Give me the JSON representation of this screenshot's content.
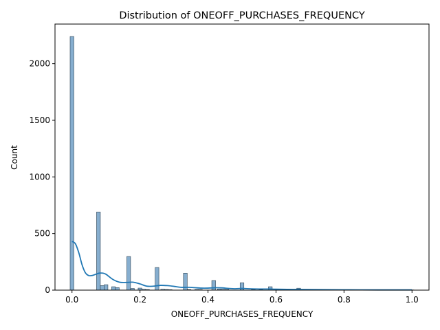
{
  "chart_data": {
    "type": "bar",
    "title": "Distribution of ONEOFF_PURCHASES_FREQUENCY",
    "xlabel": "ONEOFF_PURCHASES_FREQUENCY",
    "ylabel": "Count",
    "xlim": [
      -0.05,
      1.05
    ],
    "ylim": [
      0,
      2350
    ],
    "x_ticks": [
      0.0,
      0.2,
      0.4,
      0.6,
      0.8,
      1.0
    ],
    "x_tick_labels": [
      "0.0",
      "0.2",
      "0.4",
      "0.6",
      "0.8",
      "1.0"
    ],
    "y_ticks": [
      0,
      500,
      1000,
      1500,
      2000
    ],
    "y_tick_labels": [
      "0",
      "500",
      "1000",
      "1500",
      "2000"
    ],
    "grid": false,
    "bin_width": 0.0111,
    "bins": [
      {
        "x": 0.0,
        "count": 2240
      },
      {
        "x": 0.0778,
        "count": 690
      },
      {
        "x": 0.0889,
        "count": 40
      },
      {
        "x": 0.1,
        "count": 48
      },
      {
        "x": 0.1222,
        "count": 30
      },
      {
        "x": 0.1333,
        "count": 22
      },
      {
        "x": 0.1667,
        "count": 297
      },
      {
        "x": 0.1778,
        "count": 15
      },
      {
        "x": 0.2,
        "count": 18
      },
      {
        "x": 0.2111,
        "count": 8
      },
      {
        "x": 0.2222,
        "count": 5
      },
      {
        "x": 0.25,
        "count": 200
      },
      {
        "x": 0.2667,
        "count": 8
      },
      {
        "x": 0.2778,
        "count": 6
      },
      {
        "x": 0.2889,
        "count": 4
      },
      {
        "x": 0.3333,
        "count": 150
      },
      {
        "x": 0.3444,
        "count": 5
      },
      {
        "x": 0.3667,
        "count": 6
      },
      {
        "x": 0.3778,
        "count": 5
      },
      {
        "x": 0.4167,
        "count": 85
      },
      {
        "x": 0.4333,
        "count": 10
      },
      {
        "x": 0.4444,
        "count": 8
      },
      {
        "x": 0.4556,
        "count": 6
      },
      {
        "x": 0.5,
        "count": 65
      },
      {
        "x": 0.5333,
        "count": 6
      },
      {
        "x": 0.5556,
        "count": 5
      },
      {
        "x": 0.5833,
        "count": 30
      },
      {
        "x": 0.6111,
        "count": 5
      },
      {
        "x": 0.6667,
        "count": 17
      },
      {
        "x": 0.75,
        "count": 4
      },
      {
        "x": 0.8333,
        "count": 3
      },
      {
        "x": 0.9167,
        "count": 3
      },
      {
        "x": 1.0,
        "count": 2
      }
    ],
    "kde": {
      "x": [
        0.0,
        0.01,
        0.02,
        0.03,
        0.04,
        0.05,
        0.06,
        0.07,
        0.08,
        0.09,
        0.1,
        0.12,
        0.14,
        0.16,
        0.18,
        0.2,
        0.22,
        0.24,
        0.26,
        0.28,
        0.3,
        0.32,
        0.34,
        0.36,
        0.38,
        0.4,
        0.42,
        0.44,
        0.46,
        0.48,
        0.5,
        0.52,
        0.55,
        0.58,
        0.6,
        0.65,
        0.7,
        0.8,
        0.9,
        1.0
      ],
      "y": [
        430,
        410,
        330,
        220,
        150,
        128,
        130,
        140,
        150,
        150,
        140,
        95,
        70,
        68,
        70,
        55,
        35,
        35,
        42,
        40,
        33,
        25,
        25,
        22,
        18,
        18,
        21,
        20,
        15,
        12,
        15,
        12,
        10,
        10,
        8,
        6,
        5,
        3,
        2,
        2
      ]
    },
    "colors": {
      "bar_fill": "#86aecf",
      "bar_edge": "#2b4050",
      "kde_line": "#1f77b4"
    }
  }
}
